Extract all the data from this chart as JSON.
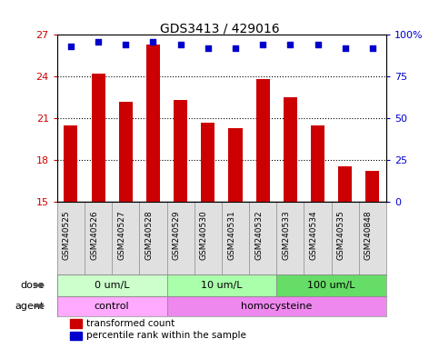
{
  "title": "GDS3413 / 429016",
  "samples": [
    "GSM240525",
    "GSM240526",
    "GSM240527",
    "GSM240528",
    "GSM240529",
    "GSM240530",
    "GSM240531",
    "GSM240532",
    "GSM240533",
    "GSM240534",
    "GSM240535",
    "GSM240848"
  ],
  "bar_values": [
    20.5,
    24.2,
    22.2,
    26.3,
    22.3,
    20.7,
    20.3,
    23.8,
    22.5,
    20.5,
    17.5,
    17.2
  ],
  "percentile_values": [
    93,
    96,
    94,
    96,
    94,
    92,
    92,
    94,
    94,
    94,
    92,
    92
  ],
  "bar_color": "#cc0000",
  "dot_color": "#0000cc",
  "ylim_left": [
    15,
    27
  ],
  "ylim_right": [
    0,
    100
  ],
  "yticks_left": [
    15,
    18,
    21,
    24,
    27
  ],
  "yticks_right": [
    0,
    25,
    50,
    75,
    100
  ],
  "ytick_labels_right": [
    "0",
    "25",
    "50",
    "75",
    "100%"
  ],
  "dose_groups": [
    {
      "label": "0 um/L",
      "start": 0,
      "end": 4
    },
    {
      "label": "10 um/L",
      "start": 4,
      "end": 8
    },
    {
      "label": "100 um/L",
      "start": 8,
      "end": 12
    }
  ],
  "dose_colors": [
    "#ccffcc",
    "#aaffaa",
    "#66dd66"
  ],
  "agent_groups": [
    {
      "label": "control",
      "start": 0,
      "end": 4
    },
    {
      "label": "homocysteine",
      "start": 4,
      "end": 12
    }
  ],
  "agent_colors": [
    "#ffaaff",
    "#ee88ee"
  ],
  "legend_bar_label": "transformed count",
  "legend_dot_label": "percentile rank within the sample",
  "dose_label": "dose",
  "agent_label": "agent",
  "background_color": "#ffffff"
}
